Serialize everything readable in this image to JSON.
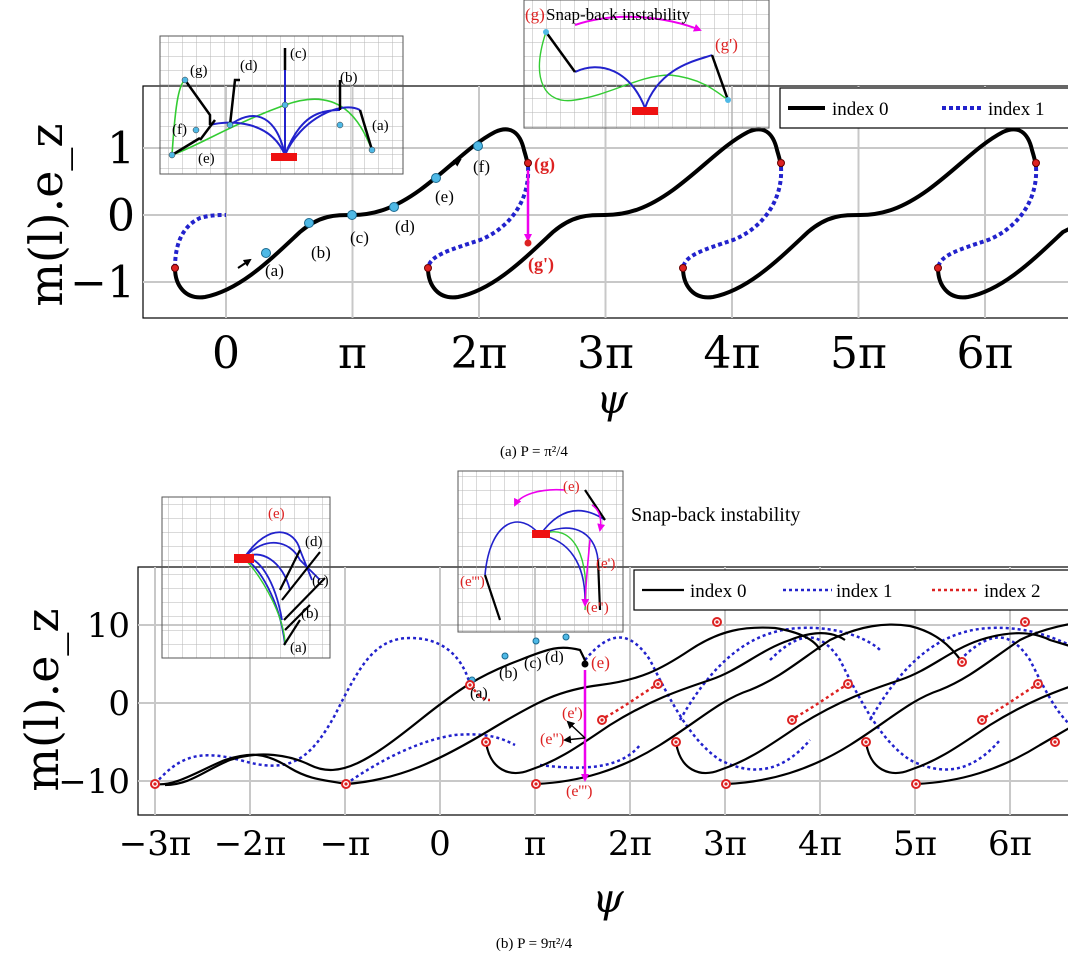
{
  "panels": [
    {
      "id": "a",
      "caption": "(a) P = π²/4",
      "ylabel": "m(l).e_z",
      "xlabel": "ψ",
      "ylim": [
        -1.5,
        1.85
      ],
      "xlim": [
        -1.7,
        15.6
      ],
      "xticks": [
        {
          "v": 0,
          "t": "0"
        },
        {
          "v": 3.1416,
          "t": "π"
        },
        {
          "v": 6.2832,
          "t": "2π"
        },
        {
          "v": 9.4248,
          "t": "3π"
        },
        {
          "v": 12.566,
          "t": "4π"
        },
        {
          "v": 15.708,
          "t": "5π"
        },
        {
          "v": 18.85,
          "t": "6π"
        }
      ],
      "yticks": [
        {
          "v": -1,
          "t": "−1"
        },
        {
          "v": 0,
          "t": "0"
        },
        {
          "v": 1,
          "t": "1"
        }
      ],
      "legend": [
        {
          "label": "index 0",
          "style": "solid-black"
        },
        {
          "label": "index 1",
          "style": "dotted-blue"
        }
      ],
      "annotations": {
        "snap_title": "Snap-back instability",
        "g": "(g)",
        "gp": "(g')",
        "points": [
          "(a)",
          "(b)",
          "(c)",
          "(d)",
          "(e)",
          "(f)",
          "(g)"
        ]
      },
      "inset_labels": [
        "(g)",
        "(d)",
        "(c)",
        "(b)",
        "(a)",
        "(f)",
        "(e)"
      ],
      "inset2_labels": [
        "(g)",
        "(g')"
      ]
    },
    {
      "id": "b",
      "caption": "(b) P = 9π²/4",
      "ylabel": "m(l).e_z",
      "xlabel": "ψ",
      "ylim": [
        -15,
        18
      ],
      "xticks": [
        {
          "v": -9.4248,
          "t": "−3π"
        },
        {
          "v": -6.2832,
          "t": "−2π"
        },
        {
          "v": -3.1416,
          "t": "−π"
        },
        {
          "v": 0,
          "t": "0"
        },
        {
          "v": 3.1416,
          "t": "π"
        },
        {
          "v": 6.2832,
          "t": "2π"
        },
        {
          "v": 9.4248,
          "t": "3π"
        },
        {
          "v": 12.566,
          "t": "4π"
        },
        {
          "v": 15.708,
          "t": "5π"
        },
        {
          "v": 18.85,
          "t": "6π"
        }
      ],
      "yticks": [
        {
          "v": -10,
          "t": "−10"
        },
        {
          "v": 0,
          "t": "0"
        },
        {
          "v": 10,
          "t": "10"
        }
      ],
      "legend": [
        {
          "label": "index 0",
          "style": "solid-black"
        },
        {
          "label": "index 1",
          "style": "dotted-blue"
        },
        {
          "label": "index 2",
          "style": "dotted-red"
        }
      ],
      "annotations": {
        "snap_title": "Snap-back instability",
        "e": "(e)",
        "ep": "(e')",
        "epp": "(e\")",
        "eppp": "(e''')",
        "points": [
          "(a)",
          "(b)",
          "(c)",
          "(d)"
        ]
      },
      "inset_labels": [
        "(e)",
        "(d)",
        "(c)",
        "(b)",
        "(a)"
      ],
      "inset2_labels": [
        "(e)",
        "(e')",
        "(e\")",
        "(e''')"
      ]
    }
  ],
  "chart_data": [
    {
      "type": "line",
      "title": "(a) P = π²/4",
      "xlabel": "ψ",
      "ylabel": "m(l).e_z",
      "ylim": [
        -1.5,
        1.85
      ],
      "series": [
        {
          "name": "index 0",
          "color": "#000000",
          "x": [
            -1.6,
            -1.2,
            -0.5,
            0.5,
            1.5,
            2.5,
            3.14,
            3.8,
            4.8,
            5.8,
            6.28,
            6.9,
            7.4,
            7.6
          ],
          "y": [
            -0.8,
            -1.15,
            -1.2,
            -0.95,
            -0.55,
            -0.18,
            0,
            0.2,
            0.55,
            0.95,
            1.12,
            1.2,
            1.0,
            0.75
          ]
        },
        {
          "name": "index 1",
          "color": "#2222cc",
          "x": [
            -1.6,
            -1.4,
            -1.0,
            -0.4,
            0.0
          ],
          "y": [
            -0.75,
            -0.35,
            -0.05,
            0.0,
            0.0
          ]
        }
      ]
    },
    {
      "type": "line",
      "title": "(b) P = 9π²/4",
      "xlabel": "ψ",
      "ylabel": "m(l).e_z",
      "ylim": [
        -15,
        18
      ],
      "series": [
        {
          "name": "index 0",
          "color": "#000000"
        },
        {
          "name": "index 1",
          "color": "#2222cc"
        },
        {
          "name": "index 2",
          "color": "#dd2222"
        }
      ]
    }
  ],
  "colors": {
    "index0": "#000000",
    "index1": "#2222cc",
    "index2": "#dd2222",
    "marker_cyan": "#4fb9e6",
    "marker_red": "#dd2222",
    "snap_arrow": "#ee00ee",
    "rod_green": "#33cc33",
    "rod_blue": "#2222cc",
    "clamp": "#ee1111"
  }
}
